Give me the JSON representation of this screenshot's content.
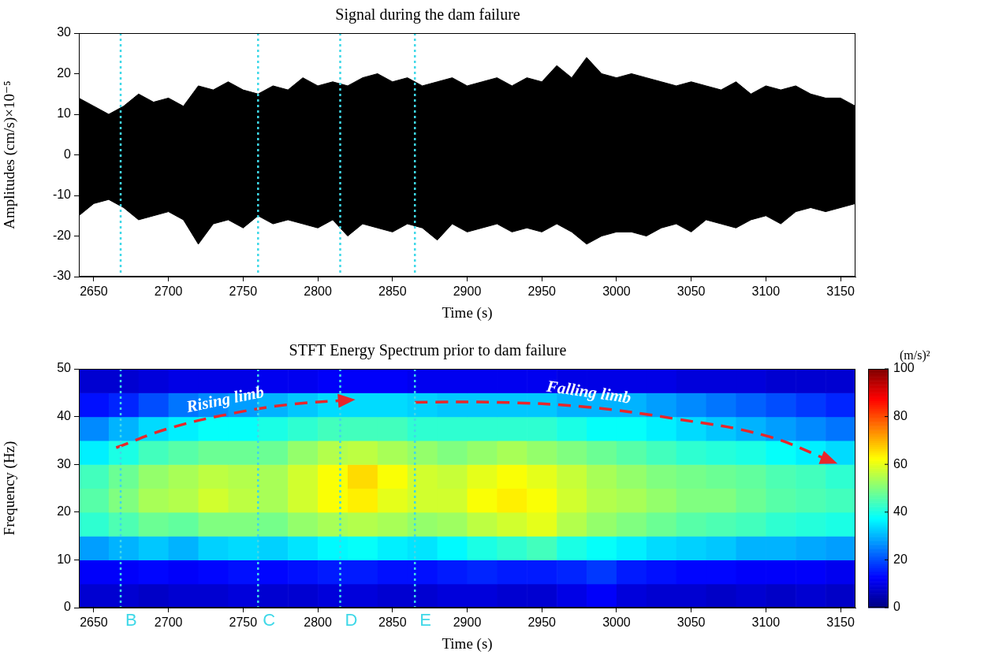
{
  "chart_data": [
    {
      "type": "area",
      "title": "Signal during the dam failure",
      "x_label": "Time (s)",
      "y_label": "Amplitudes (cm/s)×10⁻⁵",
      "color": "#000000",
      "grid": false,
      "x": [
        2640,
        2650,
        2660,
        2670,
        2680,
        2690,
        2700,
        2710,
        2720,
        2730,
        2740,
        2750,
        2760,
        2770,
        2780,
        2790,
        2800,
        2810,
        2820,
        2830,
        2840,
        2850,
        2860,
        2870,
        2880,
        2890,
        2900,
        2910,
        2920,
        2930,
        2940,
        2950,
        2960,
        2970,
        2980,
        2990,
        3000,
        3010,
        3020,
        3030,
        3040,
        3050,
        3060,
        3070,
        3080,
        3090,
        3100,
        3110,
        3120,
        3130,
        3140,
        3150,
        3160
      ],
      "high": [
        14,
        12,
        10,
        12,
        15,
        13,
        14,
        12,
        17,
        16,
        18,
        16,
        15,
        17,
        16,
        19,
        17,
        18,
        17,
        19,
        20,
        18,
        19,
        17,
        18,
        19,
        17,
        18,
        19,
        17,
        19,
        18,
        22,
        19,
        24,
        20,
        19,
        20,
        19,
        18,
        17,
        18,
        17,
        16,
        18,
        15,
        17,
        16,
        17,
        15,
        14,
        14,
        12
      ],
      "low": [
        -15,
        -12,
        -11,
        -13,
        -16,
        -15,
        -14,
        -16,
        -22,
        -17,
        -16,
        -18,
        -15,
        -17,
        -16,
        -17,
        -18,
        -16,
        -20,
        -17,
        -18,
        -19,
        -17,
        -18,
        -21,
        -17,
        -19,
        -18,
        -17,
        -19,
        -18,
        -19,
        -17,
        -19,
        -22,
        -20,
        -19,
        -19,
        -20,
        -18,
        -17,
        -19,
        -16,
        -17,
        -18,
        -16,
        -15,
        -17,
        -14,
        -13,
        -14,
        -13,
        -12
      ],
      "xlim": [
        2640,
        3160
      ],
      "xticks": [
        2650,
        2700,
        2750,
        2800,
        2850,
        2900,
        2950,
        3000,
        3050,
        3100,
        3150
      ],
      "ylim": [
        -30,
        30
      ],
      "yticks": [
        -30,
        -20,
        -10,
        0,
        10,
        20,
        30
      ],
      "vlines": [
        2668,
        2760,
        2815,
        2865
      ]
    },
    {
      "type": "heatmap",
      "title": "STFT Energy Spectrum prior to dam failure",
      "x_label": "Time (s)",
      "y_label": "Frequency (Hz)",
      "grid": false,
      "x_bins": [
        2640,
        2660,
        2680,
        2700,
        2720,
        2740,
        2760,
        2780,
        2800,
        2820,
        2840,
        2860,
        2880,
        2900,
        2920,
        2940,
        2960,
        2980,
        3000,
        3020,
        3040,
        3060,
        3080,
        3100,
        3120,
        3140,
        3160
      ],
      "y_bins": [
        0,
        5,
        10,
        15,
        20,
        25,
        30,
        35,
        40,
        45,
        50
      ],
      "cells": [
        [
          8,
          8,
          7,
          8,
          8,
          9,
          8,
          8,
          9,
          9,
          8,
          8,
          9,
          9,
          8,
          8,
          10,
          12,
          9,
          8,
          8,
          7,
          8,
          7,
          8,
          7
        ],
        [
          12,
          12,
          13,
          12,
          13,
          14,
          13,
          14,
          15,
          15,
          14,
          14,
          15,
          16,
          15,
          15,
          16,
          18,
          15,
          14,
          13,
          13,
          12,
          12,
          12,
          11
        ],
        [
          28,
          30,
          32,
          30,
          33,
          34,
          33,
          35,
          37,
          38,
          36,
          35,
          37,
          40,
          42,
          44,
          40,
          38,
          36,
          34,
          33,
          32,
          30,
          30,
          29,
          28
        ],
        [
          42,
          45,
          48,
          47,
          50,
          50,
          49,
          52,
          54,
          55,
          54,
          52,
          53,
          56,
          58,
          60,
          55,
          52,
          50,
          48,
          46,
          45,
          44,
          42,
          41,
          40
        ],
        [
          46,
          50,
          54,
          55,
          58,
          56,
          54,
          58,
          62,
          64,
          60,
          58,
          58,
          62,
          64,
          62,
          58,
          55,
          54,
          52,
          50,
          50,
          48,
          46,
          45,
          44
        ],
        [
          44,
          48,
          52,
          54,
          56,
          55,
          54,
          58,
          62,
          66,
          62,
          58,
          57,
          60,
          62,
          60,
          57,
          54,
          52,
          50,
          49,
          48,
          47,
          45,
          44,
          42
        ],
        [
          36,
          40,
          44,
          46,
          48,
          48,
          48,
          52,
          55,
          56,
          54,
          52,
          50,
          52,
          54,
          52,
          50,
          48,
          46,
          44,
          42,
          41,
          40,
          38,
          36,
          34
        ],
        [
          26,
          30,
          34,
          36,
          38,
          38,
          40,
          42,
          44,
          44,
          44,
          42,
          42,
          42,
          42,
          42,
          40,
          38,
          38,
          36,
          34,
          32,
          30,
          28,
          26,
          24
        ],
        [
          14,
          16,
          20,
          24,
          26,
          28,
          30,
          32,
          34,
          34,
          34,
          33,
          32,
          32,
          32,
          32,
          30,
          30,
          30,
          28,
          26,
          24,
          22,
          20,
          18,
          16
        ],
        [
          8,
          8,
          9,
          10,
          10,
          10,
          11,
          11,
          12,
          12,
          12,
          11,
          11,
          11,
          11,
          11,
          10,
          10,
          10,
          10,
          9,
          9,
          9,
          8,
          8,
          8
        ]
      ],
      "colorbar": {
        "label": "(m/s)²",
        "range": [
          0,
          100
        ],
        "ticks": [
          0,
          20,
          40,
          60,
          80,
          100
        ]
      },
      "xlim": [
        2640,
        3160
      ],
      "xticks": [
        2650,
        2700,
        2750,
        2800,
        2850,
        2900,
        2950,
        3000,
        3050,
        3100,
        3150
      ],
      "ylim": [
        0,
        50
      ],
      "yticks": [
        0,
        10,
        20,
        30,
        40,
        50
      ],
      "vlines": [
        {
          "label": "B",
          "x": 2668
        },
        {
          "label": "C",
          "x": 2760
        },
        {
          "label": "D",
          "x": 2815
        },
        {
          "label": "E",
          "x": 2865
        }
      ],
      "limbs": [
        {
          "label": "Rising limb",
          "color": "#e8262a",
          "line_style": "dashed",
          "x": [
            2665,
            2700,
            2740,
            2780,
            2822
          ],
          "y": [
            33.5,
            37.5,
            40.5,
            42.5,
            43.5
          ]
        },
        {
          "label": "Falling limb",
          "color": "#e8262a",
          "line_style": "dashed",
          "x": [
            2865,
            2920,
            2980,
            3040,
            3100,
            3145
          ],
          "y": [
            43,
            43,
            42,
            39.5,
            36,
            30.5
          ]
        }
      ]
    }
  ]
}
